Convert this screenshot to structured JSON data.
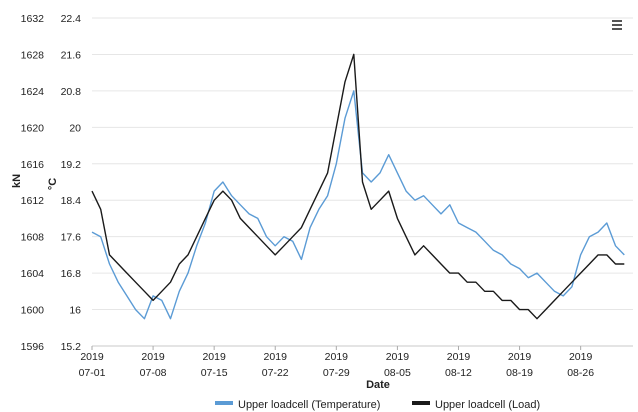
{
  "chart_data": {
    "type": "line",
    "xlabel": "Date",
    "x_ticks": [
      {
        "date": "2019-07-01",
        "line1": "2019",
        "line2": "07-01"
      },
      {
        "date": "2019-07-08",
        "line1": "2019",
        "line2": "07-08"
      },
      {
        "date": "2019-07-15",
        "line1": "2019",
        "line2": "07-15"
      },
      {
        "date": "2019-07-22",
        "line1": "2019",
        "line2": "07-22"
      },
      {
        "date": "2019-07-29",
        "line1": "2019",
        "line2": "07-29"
      },
      {
        "date": "2019-08-05",
        "line1": "2019",
        "line2": "08-05"
      },
      {
        "date": "2019-08-12",
        "line1": "2019",
        "line2": "08-12"
      },
      {
        "date": "2019-08-19",
        "line1": "2019",
        "line2": "08-19"
      },
      {
        "date": "2019-08-26",
        "line1": "2019",
        "line2": "08-26"
      }
    ],
    "xlim": [
      "2019-07-01",
      "2019-09-01"
    ],
    "y_left": {
      "label": "kN",
      "lim": [
        1596,
        1632
      ],
      "ticks": [
        "1596",
        "1600",
        "1604",
        "1608",
        "1612",
        "1616",
        "1620",
        "1624",
        "1628",
        "1632"
      ]
    },
    "y_right": {
      "label": "°C",
      "lim": [
        15.2,
        22.4
      ],
      "ticks": [
        "15.2",
        "16",
        "16.8",
        "17.6",
        "18.4",
        "19.2",
        "20",
        "20.8",
        "21.6",
        "22.4"
      ]
    },
    "grid": true,
    "legend_position": "bottom",
    "series": [
      {
        "name": "Upper loadcell (Temperature)",
        "axis": "right",
        "color": "#5b9bd5",
        "x": [
          "2019-07-01",
          "2019-07-02",
          "2019-07-03",
          "2019-07-04",
          "2019-07-05",
          "2019-07-06",
          "2019-07-07",
          "2019-07-08",
          "2019-07-09",
          "2019-07-10",
          "2019-07-11",
          "2019-07-12",
          "2019-07-13",
          "2019-07-14",
          "2019-07-15",
          "2019-07-16",
          "2019-07-17",
          "2019-07-18",
          "2019-07-19",
          "2019-07-20",
          "2019-07-21",
          "2019-07-22",
          "2019-07-23",
          "2019-07-24",
          "2019-07-25",
          "2019-07-26",
          "2019-07-27",
          "2019-07-28",
          "2019-07-29",
          "2019-07-30",
          "2019-07-31",
          "2019-08-01",
          "2019-08-02",
          "2019-08-03",
          "2019-08-04",
          "2019-08-05",
          "2019-08-06",
          "2019-08-07",
          "2019-08-08",
          "2019-08-09",
          "2019-08-10",
          "2019-08-11",
          "2019-08-12",
          "2019-08-13",
          "2019-08-14",
          "2019-08-15",
          "2019-08-16",
          "2019-08-17",
          "2019-08-18",
          "2019-08-19",
          "2019-08-20",
          "2019-08-21",
          "2019-08-22",
          "2019-08-23",
          "2019-08-24",
          "2019-08-25",
          "2019-08-26",
          "2019-08-27",
          "2019-08-28",
          "2019-08-29",
          "2019-08-30",
          "2019-08-31"
        ],
        "values": [
          17.7,
          17.6,
          17.0,
          16.6,
          16.3,
          16.0,
          15.8,
          16.3,
          16.2,
          15.8,
          16.4,
          16.8,
          17.4,
          17.9,
          18.6,
          18.8,
          18.5,
          18.3,
          18.1,
          18.0,
          17.6,
          17.4,
          17.6,
          17.5,
          17.1,
          17.8,
          18.2,
          18.5,
          19.2,
          20.2,
          20.8,
          19.0,
          18.8,
          19.0,
          19.4,
          19.0,
          18.6,
          18.4,
          18.5,
          18.3,
          18.1,
          18.3,
          17.9,
          17.8,
          17.7,
          17.5,
          17.3,
          17.2,
          17.0,
          16.9,
          16.7,
          16.8,
          16.6,
          16.4,
          16.3,
          16.5,
          17.2,
          17.6,
          17.7,
          17.9,
          17.4,
          17.2
        ]
      },
      {
        "name": "Upper loadcell (Load)",
        "axis": "left",
        "color": "#1a1a1a",
        "x": [
          "2019-07-01",
          "2019-07-02",
          "2019-07-03",
          "2019-07-04",
          "2019-07-05",
          "2019-07-06",
          "2019-07-07",
          "2019-07-08",
          "2019-07-09",
          "2019-07-10",
          "2019-07-11",
          "2019-07-12",
          "2019-07-13",
          "2019-07-14",
          "2019-07-15",
          "2019-07-16",
          "2019-07-17",
          "2019-07-18",
          "2019-07-19",
          "2019-07-20",
          "2019-07-21",
          "2019-07-22",
          "2019-07-23",
          "2019-07-24",
          "2019-07-25",
          "2019-07-26",
          "2019-07-27",
          "2019-07-28",
          "2019-07-29",
          "2019-07-30",
          "2019-07-31",
          "2019-08-01",
          "2019-08-02",
          "2019-08-03",
          "2019-08-04",
          "2019-08-05",
          "2019-08-06",
          "2019-08-07",
          "2019-08-08",
          "2019-08-09",
          "2019-08-10",
          "2019-08-11",
          "2019-08-12",
          "2019-08-13",
          "2019-08-14",
          "2019-08-15",
          "2019-08-16",
          "2019-08-17",
          "2019-08-18",
          "2019-08-19",
          "2019-08-20",
          "2019-08-21",
          "2019-08-22",
          "2019-08-23",
          "2019-08-24",
          "2019-08-25",
          "2019-08-26",
          "2019-08-27",
          "2019-08-28",
          "2019-08-29",
          "2019-08-30",
          "2019-08-31"
        ],
        "values": [
          1613,
          1611,
          1606,
          1605,
          1604,
          1603,
          1602,
          1601,
          1602,
          1603,
          1605,
          1606,
          1608,
          1610,
          1612,
          1613,
          1612,
          1610,
          1609,
          1608,
          1607,
          1606,
          1607,
          1608,
          1609,
          1611,
          1613,
          1615,
          1620,
          1625,
          1628,
          1614,
          1611,
          1612,
          1613,
          1610,
          1608,
          1606,
          1607,
          1606,
          1605,
          1604,
          1604,
          1603,
          1603,
          1602,
          1602,
          1601,
          1601,
          1600,
          1600,
          1599,
          1600,
          1601,
          1602,
          1603,
          1604,
          1605,
          1606,
          1606,
          1605,
          1605
        ]
      }
    ]
  }
}
